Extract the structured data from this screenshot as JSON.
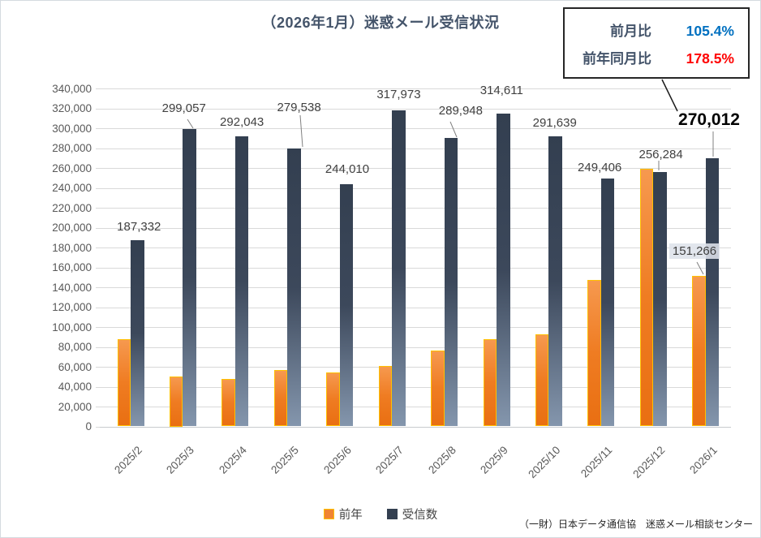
{
  "title": "（2026年1月）迷惑メール受信状況",
  "stat_box": {
    "rows": [
      {
        "label": "前月比",
        "value": "105.4%",
        "value_color": "#0070c0"
      },
      {
        "label": "前年同月比",
        "value": "178.5%",
        "value_color": "#ff0000"
      }
    ]
  },
  "source_note": "（一財）日本データ通信協　迷惑メール相談センター",
  "colors": {
    "received_bar_top": "#333f50",
    "received_bar_bottom": "#8496ad",
    "prev_year_bar_top": "#f6994f",
    "prev_year_bar_bottom": "#e96f12",
    "prev_year_bar_border": "#ffc000",
    "grid": "#d9d9d9",
    "axis_text": "#595959",
    "label_text": "#404040",
    "title_text": "#44546a",
    "highlight_label_text": "#000000",
    "ratio_blue": "#0070c0",
    "ratio_red": "#ff0000"
  },
  "chart_data": {
    "type": "bar",
    "title": "（2026年1月）迷惑メール受信状況",
    "categories": [
      "2025/2",
      "2025/3",
      "2025/4",
      "2025/5",
      "2025/6",
      "2025/7",
      "2025/8",
      "2025/9",
      "2025/10",
      "2025/11",
      "2025/12",
      "2026/1"
    ],
    "series": [
      {
        "name": "前年",
        "color": "#ed7d31",
        "values": [
          88000,
          50000,
          48000,
          57000,
          54000,
          61000,
          76000,
          88000,
          93000,
          147000,
          259000,
          151266
        ]
      },
      {
        "name": "受信数",
        "color": "#333f50",
        "values": [
          187332,
          299057,
          292043,
          279538,
          244010,
          317973,
          289948,
          314611,
          291639,
          249406,
          256284,
          270012
        ]
      }
    ],
    "labeled_values_received": [
      "187,332",
      "299,057",
      "292,043",
      "279,538",
      "244,010",
      "317,973",
      "289,948",
      "314,611",
      "291,639",
      "249,406",
      "256,284",
      "270,012"
    ],
    "labeled_value_prev_year_last": "151,266",
    "ylim": [
      0,
      340000
    ],
    "ytick_step": 20000,
    "xlabel": "",
    "ylabel": "",
    "grid": true,
    "legend_position": "bottom"
  }
}
